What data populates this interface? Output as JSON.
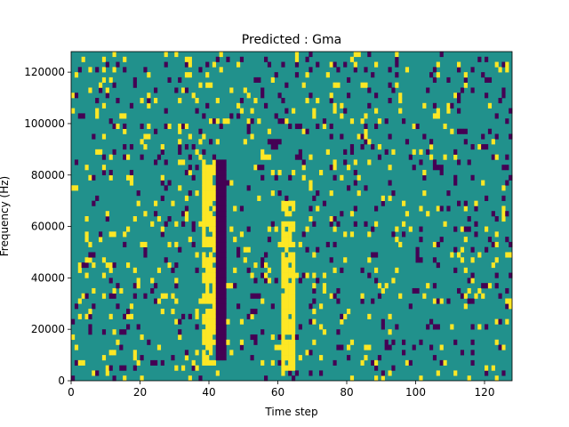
{
  "chart_data": {
    "type": "heatmap",
    "title": "Predicted : Gma",
    "xlabel": "Time step",
    "ylabel": "Frequency (Hz)",
    "xlim": [
      0,
      128
    ],
    "ylim": [
      0,
      128000
    ],
    "x_ticks": [
      "0",
      "20",
      "40",
      "60",
      "80",
      "100",
      "120"
    ],
    "y_ticks": [
      "0",
      "20000",
      "40000",
      "60000",
      "80000",
      "100000",
      "120000"
    ],
    "n_time_steps": 128,
    "n_freq_bins": 64,
    "value_levels": [
      -1,
      0,
      1
    ],
    "colors": {
      "low": "#440154",
      "mid": "#21918c",
      "high": "#fde725"
    },
    "grid": false,
    "legend": "none",
    "yellow_bands": [
      {
        "t_start": 61,
        "t_end": 64,
        "f_start": 4000,
        "f_end": 70000
      },
      {
        "t_start": 38,
        "t_end": 41,
        "f_start": 6000,
        "f_end": 86000
      }
    ],
    "purple_bands": [
      {
        "t_start": 42,
        "t_end": 44,
        "f_start": 8000,
        "f_end": 86000
      }
    ],
    "scattered_fraction": {
      "low": 0.06,
      "high": 0.06
    }
  }
}
